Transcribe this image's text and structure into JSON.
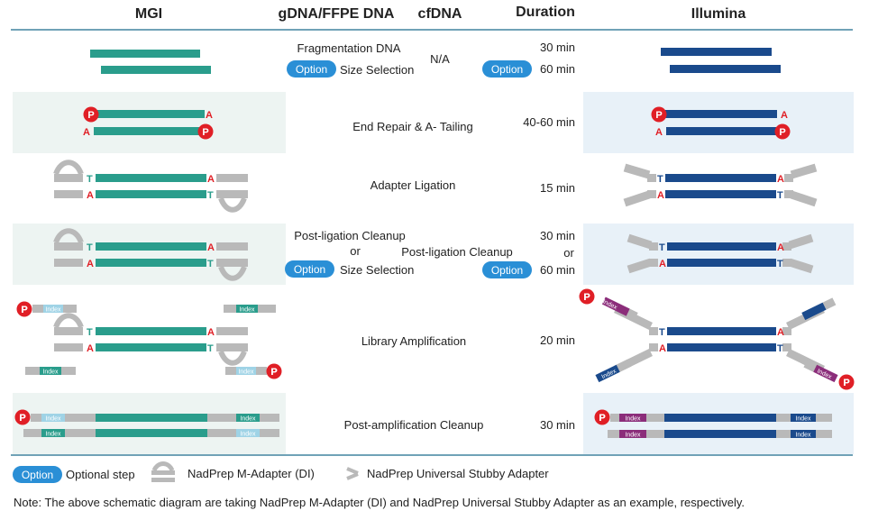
{
  "headers": {
    "mgi": "MGI",
    "gdna": "gDNA/FFPE DNA",
    "cfdna": "cfDNA",
    "duration": "Duration",
    "illumina": "Illumina"
  },
  "colors": {
    "teal": "#2a9d8c",
    "navy": "#1a4a8c",
    "red": "#e01f26",
    "gray": "#b9b9b9",
    "option": "#2a8fd6",
    "shade_mgi": "#edf4f2",
    "shade_ill": "#e8f1f8",
    "index_light": "#9fd3e6",
    "index_purple": "#8b2d7a",
    "divider": "#1a6b8c",
    "text": "#222222"
  },
  "letters": {
    "p": "P",
    "a": "A",
    "t": "T",
    "index": "Index"
  },
  "rows": {
    "frag": {
      "gdna_label": "Fragmentation DNA",
      "option": "Option",
      "size_label": "Size Selection",
      "cfdna": "N/A",
      "cf_option": "Option",
      "dur1": "30 min",
      "dur2": "60 min"
    },
    "end_repair": {
      "label": "End Repair & A- Tailing",
      "dur": "40-60 min"
    },
    "ligation": {
      "label": "Adapter Ligation",
      "dur": "15 min"
    },
    "post_lig": {
      "label1": "Post-ligation Cleanup",
      "or": "or",
      "option": "Option",
      "size_label": "Size Selection",
      "cfdna": "Post-ligation Cleanup",
      "dur1": "30 min",
      "dur_or": "or",
      "cf_option": "Option",
      "dur2": "60 min"
    },
    "amp": {
      "label": "Library Amplification",
      "dur": "20 min"
    },
    "post_amp": {
      "label": "Post-amplification Cleanup",
      "dur": "30 min"
    }
  },
  "legend": {
    "option": "Option",
    "optional": "Optional step",
    "m_adapter": "NadPrep M-Adapter (DI)",
    "stubby": "NadPrep Universal Stubby Adapter"
  },
  "note": "Note: The above schematic diagram are taking NadPrep M-Adapter (DI) and NadPrep Universal Stubby Adapter as an example, respectively."
}
